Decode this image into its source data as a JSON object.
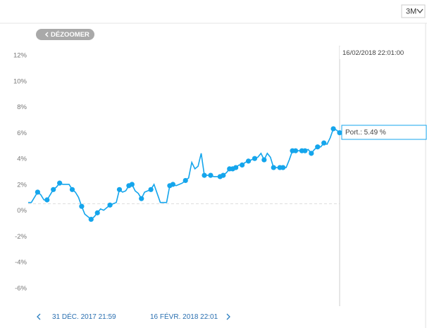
{
  "chart_data": {
    "type": "line",
    "range_selector": "3M",
    "zoom_button": "DÉZOOMER",
    "nav_start": "31 DÉC. 2017 21:59",
    "nav_end": "16 FÉVR. 2018 22:01",
    "tooltip": {
      "date": "16/02/2018 22:01:00",
      "label": "Port.: 5.49 %"
    },
    "ylim": [
      -7.7,
      12.6
    ],
    "yticks": [
      {
        "value": 12,
        "label": "12%"
      },
      {
        "value": 10,
        "label": "10%"
      },
      {
        "value": 8,
        "label": "8%"
      },
      {
        "value": 6,
        "label": "6%"
      },
      {
        "value": 4,
        "label": "4%"
      },
      {
        "value": 2,
        "label": "2%"
      },
      {
        "value": 0,
        "label": "0%"
      },
      {
        "value": -2,
        "label": "-2%"
      },
      {
        "value": -4,
        "label": "-4%"
      },
      {
        "value": -6,
        "label": "-6%"
      }
    ],
    "zero_line": true,
    "series": [
      {
        "color": "#14a5ec",
        "values": [
          0.1,
          0.1,
          0.5,
          0.9,
          0.7,
          0.3,
          0.3,
          0.7,
          1.1,
          1.3,
          1.6,
          1.5,
          1.5,
          1.5,
          1.1,
          0.9,
          0.5,
          -0.2,
          -0.8,
          -1.0,
          -1.2,
          -1.0,
          -0.7,
          -0.4,
          -0.5,
          -0.3,
          -0.1,
          0,
          0.1,
          1.1,
          0.9,
          1.0,
          1.4,
          1.5,
          1.0,
          0.8,
          0.4,
          0.9,
          1.0,
          1.1,
          1.5,
          0.8,
          0.1,
          0.1,
          0.1,
          1.4,
          1.5,
          1.4,
          1.5,
          1.6,
          1.8,
          2.0,
          3.2,
          2.7,
          2.9,
          3.9,
          2.2,
          2.2,
          2.2,
          2.1,
          2.1,
          2.1,
          2.2,
          2.4,
          2.7,
          2.7,
          2.8,
          3.0,
          3.0,
          3.2,
          3.3,
          3.4,
          3.5,
          3.6,
          3.9,
          3.4,
          3.9,
          3.6,
          2.8,
          2.8,
          2.8,
          2.8,
          2.8,
          3.4,
          4.1,
          4.1,
          4.1,
          4.1,
          4.1,
          4.2,
          3.9,
          4.2,
          4.4,
          4.4,
          4.7,
          4.6,
          5.1,
          5.8,
          5.7,
          5.49
        ]
      },
      {
        "color": "#14a5ec",
        "values": [
          null,
          null,
          null,
          0.9,
          null,
          null,
          0.3,
          null,
          1.1,
          null,
          1.6,
          null,
          null,
          null,
          1.1,
          null,
          null,
          -0.2,
          null,
          null,
          -1.2,
          null,
          -0.7,
          null,
          null,
          null,
          -0.1,
          null,
          null,
          1.1,
          null,
          null,
          1.4,
          1.5,
          null,
          null,
          0.4,
          null,
          null,
          1.1,
          null,
          null,
          null,
          null,
          null,
          1.4,
          1.5,
          null,
          null,
          null,
          1.8,
          null,
          null,
          null,
          null,
          null,
          2.2,
          null,
          2.2,
          null,
          null,
          2.1,
          2.2,
          null,
          2.7,
          2.7,
          2.8,
          null,
          3.0,
          null,
          3.3,
          null,
          3.5,
          null,
          null,
          3.4,
          null,
          null,
          2.8,
          null,
          2.8,
          2.8,
          null,
          null,
          4.1,
          4.1,
          null,
          4.1,
          4.1,
          null,
          3.9,
          null,
          4.4,
          null,
          4.7,
          null,
          null,
          5.8,
          null,
          5.49
        ]
      }
    ]
  }
}
